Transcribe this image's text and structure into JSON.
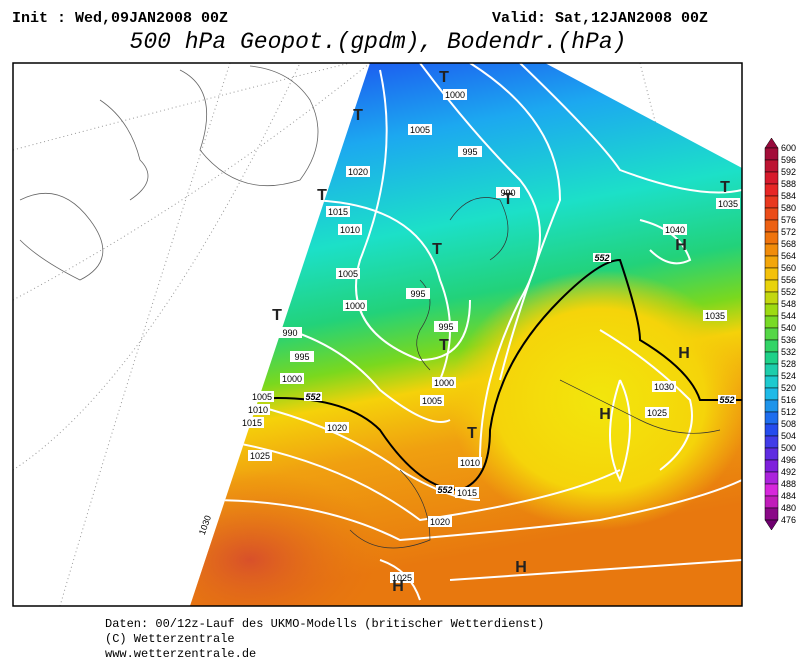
{
  "header": {
    "init": "Init : Wed,09JAN2008 00Z",
    "valid": "Valid: Sat,12JAN2008 00Z",
    "title": "500 hPa Geopot.(gpdm), Bodendr.(hPa)"
  },
  "colorbar": {
    "levels": [
      600,
      596,
      592,
      588,
      584,
      580,
      576,
      572,
      568,
      564,
      560,
      556,
      552,
      548,
      544,
      540,
      536,
      532,
      528,
      524,
      520,
      516,
      512,
      508,
      504,
      500,
      496,
      492,
      488,
      484,
      480,
      476
    ]
  },
  "map": {
    "isobar_labels": [
      1000,
      1005,
      995,
      1020,
      990,
      1015,
      1010,
      1040,
      1035,
      1005,
      995,
      1000,
      995,
      1035,
      990,
      995,
      1000,
      1000,
      1030,
      1005,
      1005,
      1025,
      1010,
      1015,
      1020,
      1025,
      1010,
      1015,
      1020,
      1030,
      1025
    ],
    "isohypse_labels": [
      552,
      552,
      552,
      552
    ],
    "pressure_centers": [
      "T",
      "T",
      "T",
      "T",
      "T",
      "T",
      "H",
      "T",
      "T",
      "H",
      "H",
      "T",
      "H",
      "H"
    ]
  },
  "footer": [
    "Daten: 00/12z-Lauf des UKMO-Modells (britischer Wetterdienst)",
    "(C) Wetterzentrale",
    "www.wetterzentrale.de"
  ]
}
